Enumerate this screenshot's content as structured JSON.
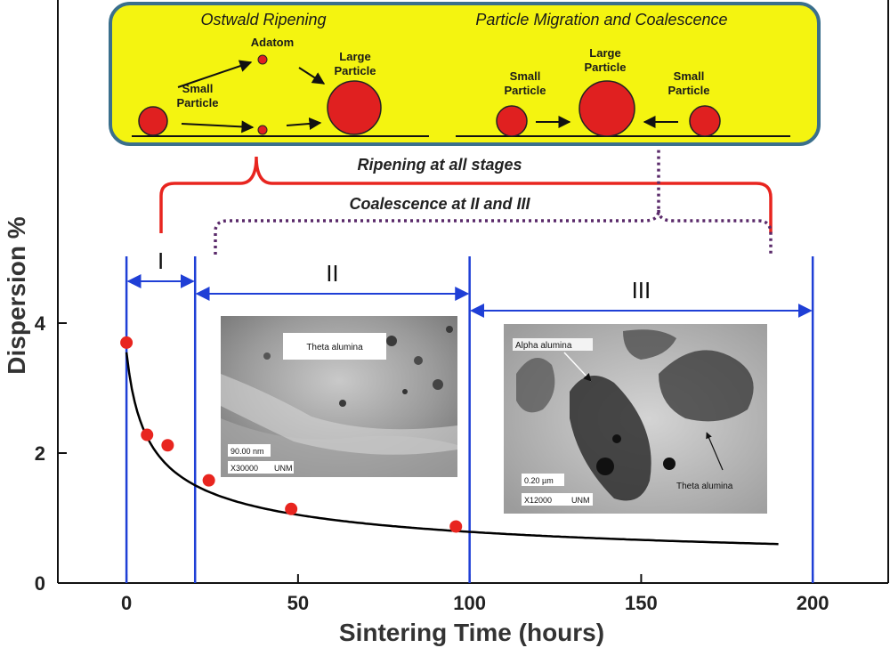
{
  "chart_data": {
    "type": "scatter",
    "xlabel": "Sintering Time (hours)",
    "ylabel": "Dispersion %",
    "xlim": [
      -20,
      222
    ],
    "ylim": [
      0,
      5
    ],
    "x_ticks": [
      0,
      50,
      100,
      150,
      200
    ],
    "y_ticks": [
      0,
      2,
      4
    ],
    "grid": false,
    "series": [
      {
        "kind": "points",
        "color": "#e8251f",
        "points": [
          [
            0,
            3.7
          ],
          [
            6,
            2.28
          ],
          [
            12,
            2.12
          ],
          [
            24,
            1.58
          ],
          [
            48,
            1.14
          ],
          [
            96,
            0.87
          ]
        ]
      },
      {
        "kind": "fit-curve",
        "color": "#000000",
        "x_range": [
          0,
          190
        ],
        "y_at_start": 3.55,
        "y_at_end": 0.6
      }
    ],
    "stage_boundaries": [
      0,
      20,
      100,
      200
    ],
    "stages": [
      {
        "label": "I",
        "from": 0,
        "to": 20
      },
      {
        "label": "II",
        "from": 20,
        "to": 100
      },
      {
        "label": "III",
        "from": 100,
        "to": 200
      }
    ]
  },
  "mechanism_box": {
    "fill_color": "#f4f410",
    "border_color": "#3a6f8c",
    "ostwald_title": "Ostwald Ripening",
    "ostwald_labels": {
      "adatom": "Adatom",
      "small": [
        "Small",
        "Particle"
      ],
      "large": [
        "Large",
        "Particle"
      ]
    },
    "migration_title": "Particle Migration and Coalescence",
    "migration_labels": {
      "small_left": [
        "Small",
        "Particle"
      ],
      "large": [
        "Large",
        "Particle"
      ],
      "small_right": [
        "Small",
        "Particle"
      ]
    },
    "particle_color": "#e02020"
  },
  "annotations": {
    "ripening": "Ripening at all stages",
    "coalescence": "Coalescence at II and III"
  },
  "micrographs": {
    "left": {
      "caption": "Theta alumina",
      "scale": "90.00 nm",
      "magnification": "X30000",
      "lab": "UNM"
    },
    "right": {
      "caption_alpha": "Alpha alumina",
      "caption_theta": "Theta alumina",
      "scale": "0.20 µm",
      "magnification": "X12000",
      "lab": "UNM"
    }
  },
  "colors": {
    "stage_lines": "#1f3fd6",
    "bracket_red": "#e8251f",
    "bracket_dotted": "#5a2a6a",
    "axes": "#111111"
  }
}
